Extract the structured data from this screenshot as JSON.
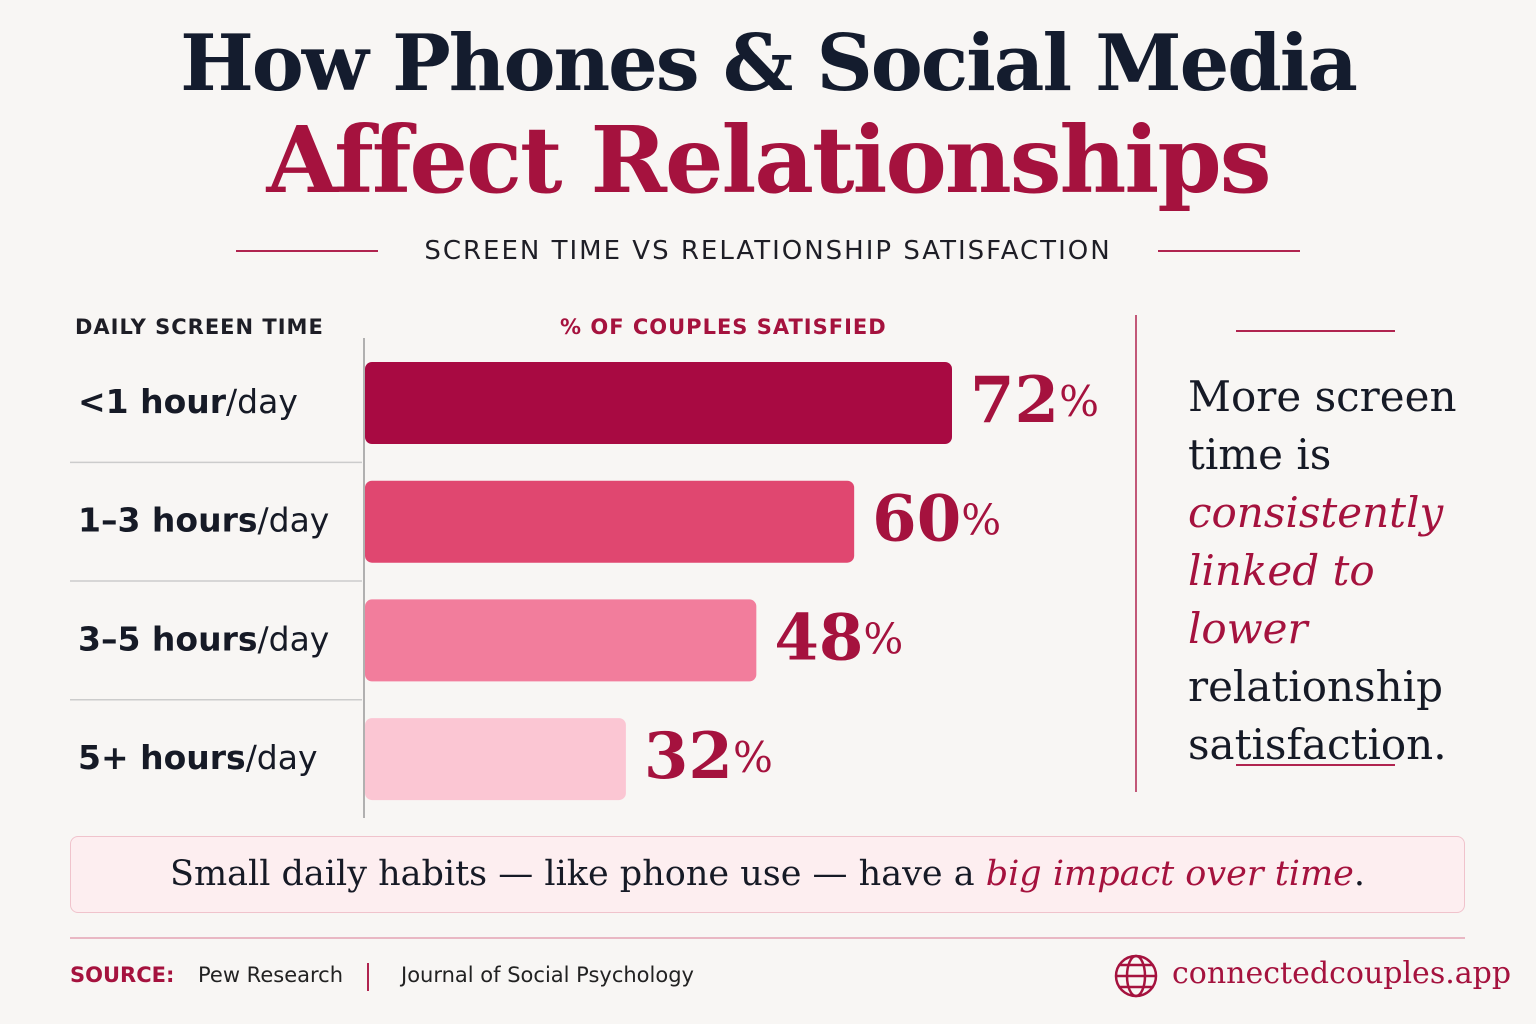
{
  "chart_data": {
    "type": "bar",
    "orientation": "horizontal",
    "title": [
      "How Phones & Social Media",
      "Affect Relationships"
    ],
    "subtitle": "SCREEN TIME VS RELATIONSHIP SATISFACTION",
    "category_header": "DAILY SCREEN TIME",
    "value_header": "% OF COUPLES SATISFIED",
    "categories": [
      "<1 hour/day",
      "1–3 hours/day",
      "3–5 hours/day",
      "5+ hours/day"
    ],
    "values": [
      72,
      60,
      48,
      32
    ],
    "value_labels": [
      "72%",
      "60%",
      "48%",
      "32%"
    ],
    "colors": [
      "#a80a42",
      "#e04770",
      "#f27d9c",
      "#fbc6d3"
    ]
  },
  "note": [
    "More screen time is",
    "consistently linked to lower",
    "relationship satisfaction."
  ],
  "banner": [
    "Small daily habits — like phone use — have a",
    "big impact over time",
    "."
  ],
  "footer": {
    "source_label": "SOURCE:",
    "sources": [
      "Pew Research",
      "Journal of Social Psychology"
    ],
    "website": "connectedcouples.app"
  }
}
